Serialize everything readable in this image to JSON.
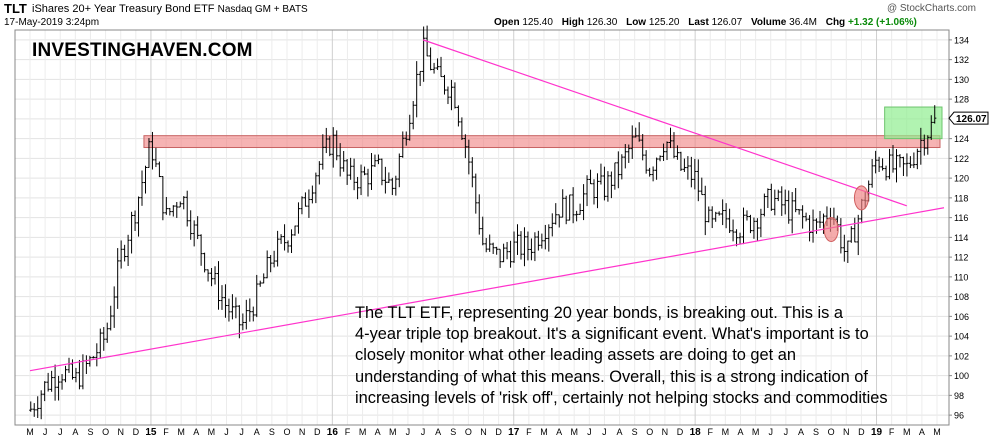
{
  "header": {
    "ticker": "TLT",
    "full_name": "iShares 20+ Year Treasury Bond ETF",
    "exchange": "Nasdaq GM + BATS",
    "datetime": "17-May-2019 3:24pm",
    "copyright": "@ StockCharts.com",
    "stats": {
      "open_label": "Open",
      "open": "125.40",
      "high_label": "High",
      "high": "126.30",
      "low_label": "Low",
      "low": "125.20",
      "last_label": "Last",
      "last": "126.07",
      "volume_label": "Volume",
      "volume": "36.4M",
      "chg_label": "Chg",
      "chg": "+1.32 (+1.06%)"
    }
  },
  "brand": "INVESTINGHAVEN.COM",
  "commentary": [
    "The TLT ETF, representing 20 year bonds, is breaking out. This is a",
    "4-year triple top breakout. It's a significant event. What's important is to",
    "closely monitor what other leading assets are doing to get an",
    "understanding of what this means. Overall, this is a strong indication of",
    "increasing levels of 'risk off', certainly not helping stocks and commodities"
  ],
  "chart_data": {
    "type": "line",
    "style": "weekly OHLC bars",
    "ylim": [
      95,
      135
    ],
    "y_ticks": [
      96,
      98,
      100,
      102,
      104,
      106,
      108,
      110,
      112,
      114,
      116,
      118,
      120,
      122,
      124,
      126,
      128,
      130,
      132,
      134
    ],
    "x_tick_labels": [
      "M",
      "J",
      "J",
      "A",
      "S",
      "O",
      "N",
      "D",
      "15",
      "F",
      "M",
      "A",
      "M",
      "J",
      "J",
      "A",
      "S",
      "O",
      "N",
      "D",
      "16",
      "F",
      "M",
      "A",
      "M",
      "J",
      "J",
      "A",
      "S",
      "O",
      "N",
      "D",
      "17",
      "F",
      "M",
      "A",
      "M",
      "J",
      "J",
      "A",
      "S",
      "O",
      "N",
      "D",
      "18",
      "F",
      "M",
      "A",
      "M",
      "J",
      "J",
      "A",
      "S",
      "O",
      "N",
      "D",
      "19",
      "F",
      "M",
      "A",
      "M"
    ],
    "x_period": [
      "2014-05",
      "2019-05"
    ],
    "last_price_label": "126.07",
    "series": [
      {
        "x": [
          "2014-05",
          "2014-06",
          "2014-07",
          "2014-08",
          "2014-09",
          "2014-10",
          "2014-11",
          "2014-12",
          "2015-01",
          "2015-02",
          "2015-03",
          "2015-04",
          "2015-05",
          "2015-06",
          "2015-07",
          "2015-08",
          "2015-09",
          "2015-10",
          "2015-11",
          "2015-12",
          "2016-01",
          "2016-02",
          "2016-03",
          "2016-04",
          "2016-05",
          "2016-06",
          "2016-07",
          "2016-08",
          "2016-09",
          "2016-10",
          "2016-11",
          "2016-12",
          "2017-01",
          "2017-02",
          "2017-03",
          "2017-04",
          "2017-05",
          "2017-06",
          "2017-07",
          "2017-08",
          "2017-09",
          "2017-10",
          "2017-11",
          "2017-12",
          "2018-01",
          "2018-02",
          "2018-03",
          "2018-04",
          "2018-05",
          "2018-06",
          "2018-07",
          "2018-08",
          "2018-09",
          "2018-10",
          "2018-11",
          "2018-12",
          "2019-01",
          "2019-02",
          "2019-03",
          "2019-04",
          "2019-05"
        ],
        "values": [
          96.5,
          99,
          100.5,
          99.5,
          101.5,
          104,
          112,
          117,
          123.5,
          116,
          118.5,
          114,
          110,
          107,
          105,
          108,
          112,
          114,
          117,
          121,
          124,
          120,
          120,
          121,
          119,
          126,
          133,
          130,
          129,
          122,
          113,
          112,
          113,
          113,
          115,
          117,
          117,
          119,
          119,
          121,
          124,
          121,
          124,
          121,
          120,
          115,
          116,
          115,
          116,
          118,
          117,
          116,
          115,
          117,
          112,
          117,
          122,
          121,
          121,
          124,
          126
        ]
      }
    ],
    "annotations": [
      {
        "type": "horizontal_band",
        "label": "resistance zone",
        "from": 123.1,
        "to": 124.3,
        "color": "#f08080"
      },
      {
        "type": "horizontal_band",
        "label": "breakout zone",
        "from": 124.0,
        "to": 127.2,
        "color": "#90ee90"
      },
      {
        "type": "trendline",
        "from": [
          "2014-05",
          100.5
        ],
        "to": [
          "2019-05",
          117.0
        ],
        "color": "#ff33cc"
      },
      {
        "type": "trendline",
        "from": [
          "2016-07",
          134.0
        ],
        "to": [
          "2019-03",
          117.2
        ],
        "color": "#ff33cc"
      },
      {
        "type": "circle",
        "at": [
          "2018-10",
          114.8
        ],
        "color": "#f08080"
      },
      {
        "type": "circle",
        "at": [
          "2018-12",
          118.0
        ],
        "color": "#f08080"
      }
    ]
  }
}
